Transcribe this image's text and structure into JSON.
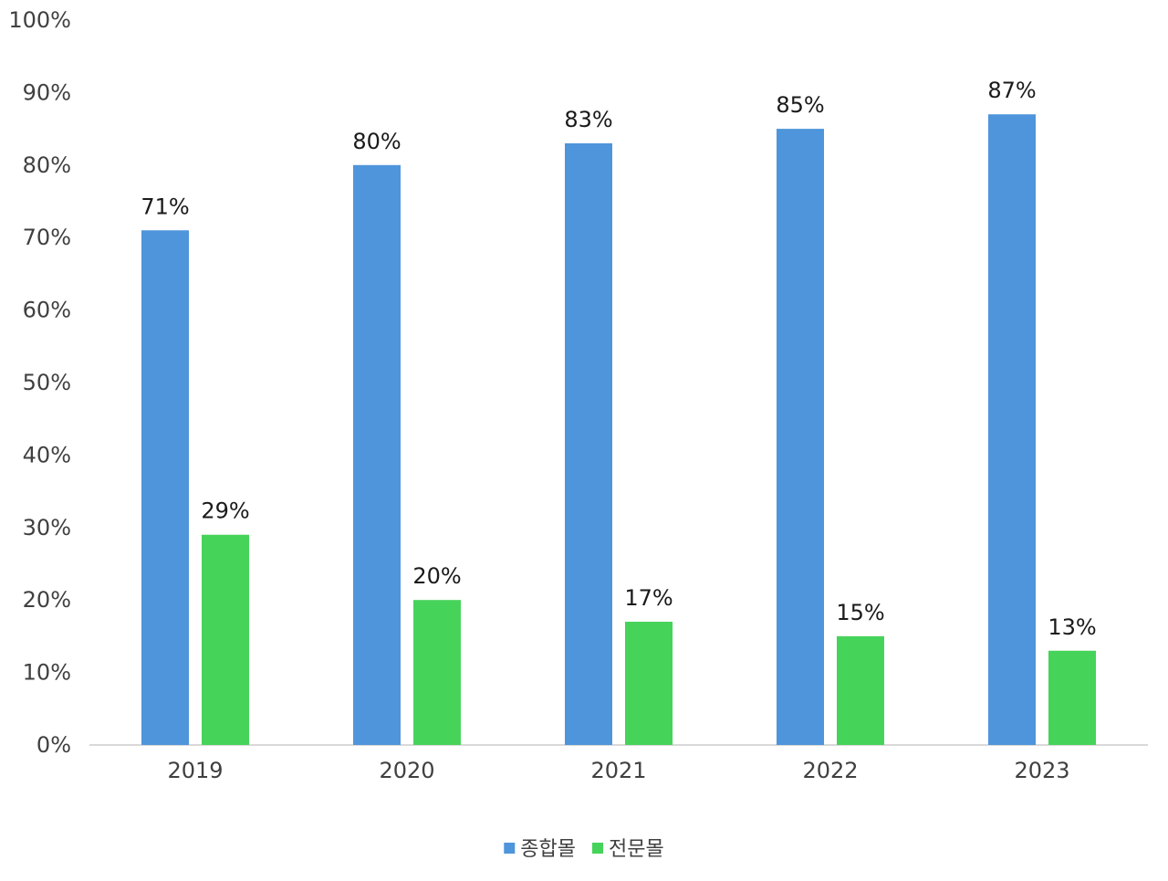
{
  "chart_data": {
    "type": "bar",
    "title": "",
    "xlabel": "",
    "ylabel": "",
    "categories": [
      "2019",
      "2020",
      "2021",
      "2022",
      "2023"
    ],
    "series": [
      {
        "name": "종합몰",
        "color": "#4F95DB",
        "values": [
          71,
          80,
          83,
          85,
          87
        ],
        "labels": [
          "71%",
          "80%",
          "83%",
          "85%",
          "87%"
        ]
      },
      {
        "name": "전문몰",
        "color": "#46D35A",
        "values": [
          29,
          20,
          17,
          15,
          13
        ],
        "labels": [
          "29%",
          "20%",
          "17%",
          "15%",
          "13%"
        ]
      }
    ],
    "ylim": [
      0,
      100
    ],
    "yticks": [
      0,
      10,
      20,
      30,
      40,
      50,
      60,
      70,
      80,
      90,
      100
    ],
    "ytick_labels": [
      "0%",
      "10%",
      "20%",
      "30%",
      "40%",
      "50%",
      "60%",
      "70%",
      "80%",
      "90%",
      "100%"
    ],
    "grid": false,
    "legend_position": "bottom"
  }
}
